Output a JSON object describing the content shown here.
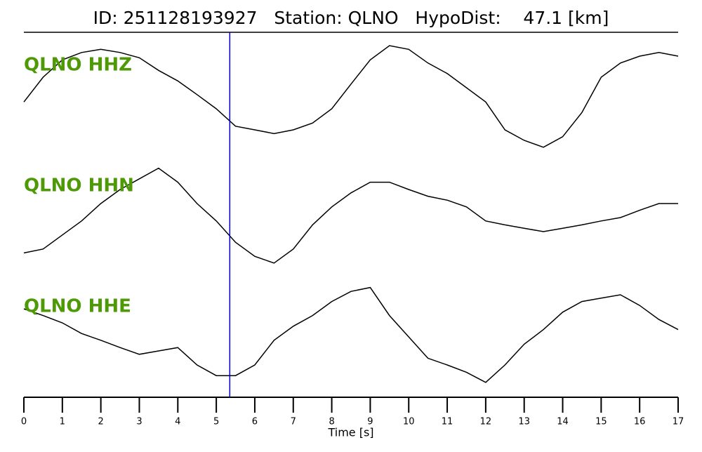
{
  "chart_data": {
    "type": "line",
    "title": "ID: 251128193927   Station: QLNO   HypoDist:    47.1 [km]",
    "xlabel": "Time [s]",
    "x": [
      0,
      0.5,
      1,
      1.5,
      2,
      2.5,
      3,
      3.5,
      4,
      4.5,
      5,
      5.5,
      6,
      6.5,
      7,
      7.5,
      8,
      8.5,
      9,
      9.5,
      10,
      10.5,
      11,
      11.5,
      12,
      12.5,
      13,
      13.5,
      14,
      14.5,
      15,
      15.5,
      16,
      16.5,
      17
    ],
    "xlim": [
      0,
      17
    ],
    "xticks": [
      0,
      1,
      2,
      3,
      4,
      5,
      6,
      7,
      8,
      9,
      10,
      11,
      12,
      13,
      14,
      15,
      16,
      17
    ],
    "ylim": [
      -1,
      1
    ],
    "label_color": "#4e9a06",
    "marker": {
      "x": 5.35,
      "color": "#0000cc"
    },
    "series": [
      {
        "name": "QLNO HHZ",
        "color": "#000000",
        "values": [
          -0.07,
          0.4,
          0.73,
          0.87,
          0.93,
          0.87,
          0.77,
          0.53,
          0.33,
          0.07,
          -0.2,
          -0.53,
          -0.6,
          -0.67,
          -0.6,
          -0.47,
          -0.2,
          0.27,
          0.73,
          1,
          0.93,
          0.67,
          0.47,
          0.2,
          -0.07,
          -0.6,
          -0.8,
          -0.93,
          -0.73,
          -0.27,
          0.4,
          0.67,
          0.8,
          0.87,
          0.8
        ]
      },
      {
        "name": "QLNO HHN",
        "color": "#000000",
        "values": [
          -0.63,
          -0.56,
          -0.31,
          -0.06,
          0.25,
          0.5,
          0.69,
          0.88,
          0.63,
          0.25,
          -0.06,
          -0.44,
          -0.69,
          -0.81,
          -0.56,
          -0.13,
          0.19,
          0.44,
          0.63,
          0.63,
          0.5,
          0.38,
          0.31,
          0.19,
          -0.06,
          -0.13,
          -0.19,
          -0.25,
          -0.19,
          -0.13,
          -0.06,
          0,
          0.13,
          0.25,
          0.25
        ]
      },
      {
        "name": "QLNO HHE",
        "color": "#000000",
        "values": [
          0.5,
          0.38,
          0.25,
          0.06,
          -0.06,
          -0.19,
          -0.31,
          -0.25,
          -0.19,
          -0.5,
          -0.69,
          -0.69,
          -0.5,
          -0.06,
          0.19,
          0.38,
          0.63,
          0.81,
          0.88,
          0.38,
          0,
          -0.38,
          -0.5,
          -0.63,
          -0.81,
          -0.5,
          -0.13,
          0.13,
          0.44,
          0.63,
          0.69,
          0.75,
          0.56,
          0.31,
          0.13
        ]
      }
    ]
  }
}
